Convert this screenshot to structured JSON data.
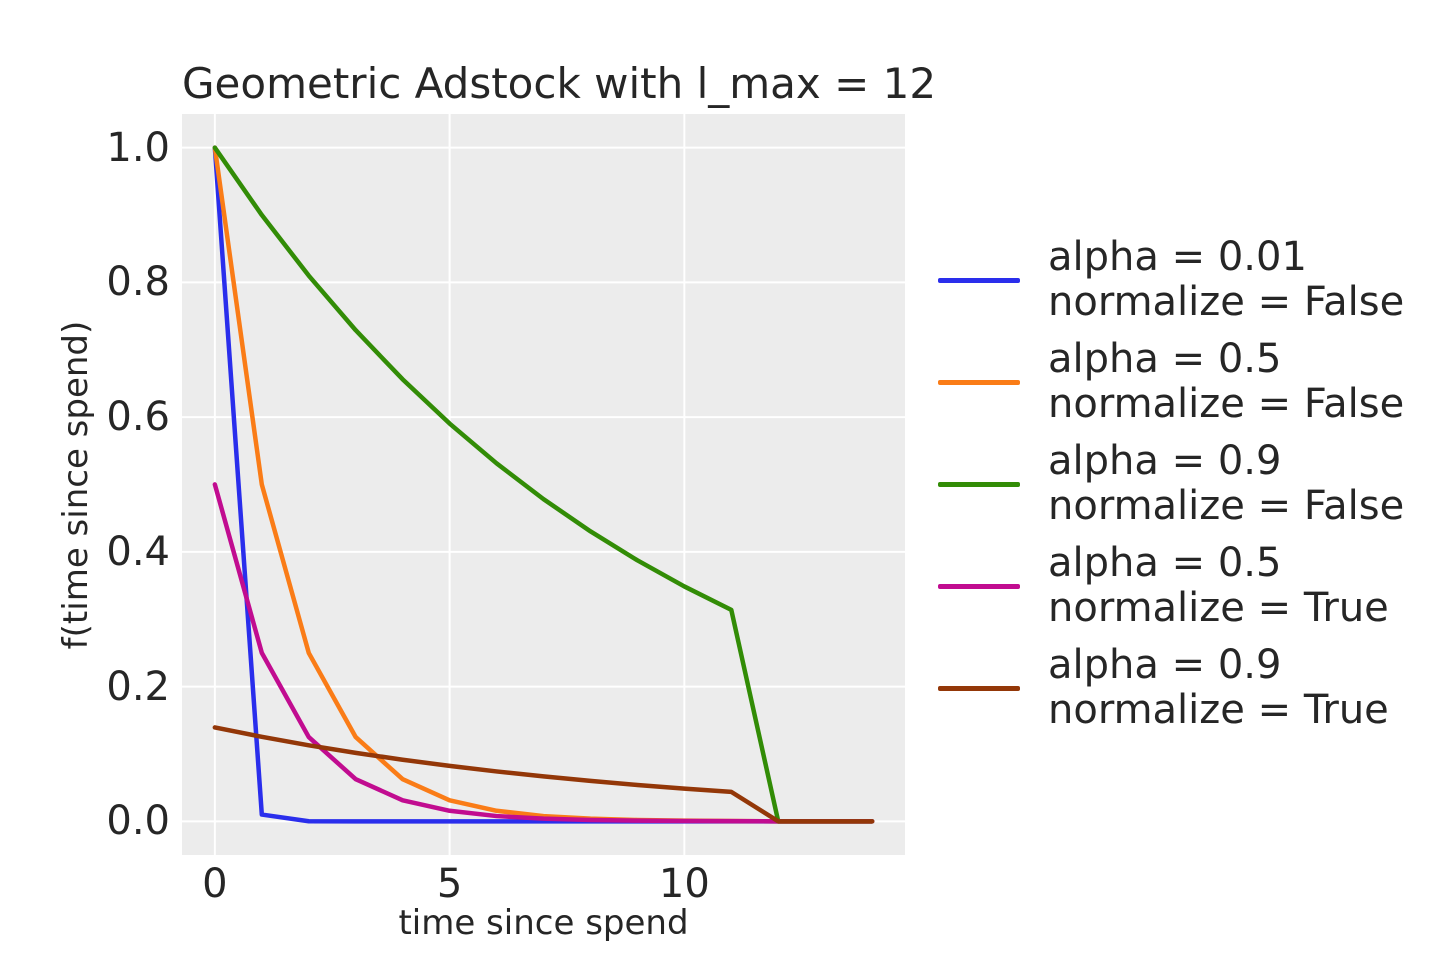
{
  "chart_data": {
    "type": "line",
    "title": "Geometric Adstock with l_max = 12",
    "xlabel": "time since spend",
    "ylabel": "f(time since spend)",
    "xlim": [
      -0.7,
      14.7
    ],
    "ylim": [
      -0.05,
      1.05
    ],
    "grid": true,
    "legend_position": "right of axes",
    "background_color": "#ececec",
    "grid_color": "#ffffff",
    "text_color": "#262626",
    "x_tick_values": [
      0,
      5,
      10
    ],
    "x_tick_labels": [
      "0",
      "5",
      "10"
    ],
    "y_tick_values": [
      0.0,
      0.2,
      0.4,
      0.6,
      0.8,
      1.0
    ],
    "y_tick_labels": [
      "0.0",
      "0.2",
      "0.4",
      "0.6",
      "0.8",
      "1.0"
    ],
    "x": [
      0,
      1,
      2,
      3,
      4,
      5,
      6,
      7,
      8,
      9,
      10,
      11,
      12,
      13,
      14
    ],
    "series": [
      {
        "name": "alpha = 0.01 normalize = False",
        "label_lines": [
          "alpha = 0.01",
          "normalize = False"
        ],
        "color": "#2a2eec",
        "values": [
          1.0,
          0.01,
          0.0001,
          1e-06,
          0,
          0,
          0,
          0,
          0,
          0,
          0,
          0,
          0,
          0,
          0
        ]
      },
      {
        "name": "alpha = 0.5 normalize = False",
        "label_lines": [
          "alpha = 0.5",
          "normalize = False"
        ],
        "color": "#fa7c17",
        "values": [
          1.0,
          0.5,
          0.25,
          0.125,
          0.0625,
          0.03125,
          0.01563,
          0.00781,
          0.00391,
          0.00195,
          0.00098,
          0.00049,
          0,
          0,
          0
        ]
      },
      {
        "name": "alpha = 0.9 normalize = False",
        "label_lines": [
          "alpha = 0.9",
          "normalize = False"
        ],
        "color": "#328c06",
        "values": [
          1.0,
          0.9,
          0.81,
          0.729,
          0.6561,
          0.59049,
          0.53144,
          0.4783,
          0.43047,
          0.38742,
          0.34868,
          0.31381,
          0,
          0,
          0
        ]
      },
      {
        "name": "alpha = 0.5 normalize = True",
        "label_lines": [
          "alpha = 0.5",
          "normalize = True"
        ],
        "color": "#c10c90",
        "values": [
          0.50012,
          0.25006,
          0.12503,
          0.06252,
          0.03126,
          0.01563,
          0.00781,
          0.00391,
          0.00195,
          0.00098,
          0.00049,
          0.00024,
          0,
          0,
          0
        ]
      },
      {
        "name": "alpha = 0.9 normalize = True",
        "label_lines": [
          "alpha = 0.9",
          "normalize = True"
        ],
        "color": "#933708",
        "values": [
          0.13936,
          0.12542,
          0.11288,
          0.10159,
          0.09143,
          0.08229,
          0.07406,
          0.06666,
          0.05999,
          0.05399,
          0.04859,
          0.04373,
          0,
          0,
          0
        ]
      }
    ]
  }
}
